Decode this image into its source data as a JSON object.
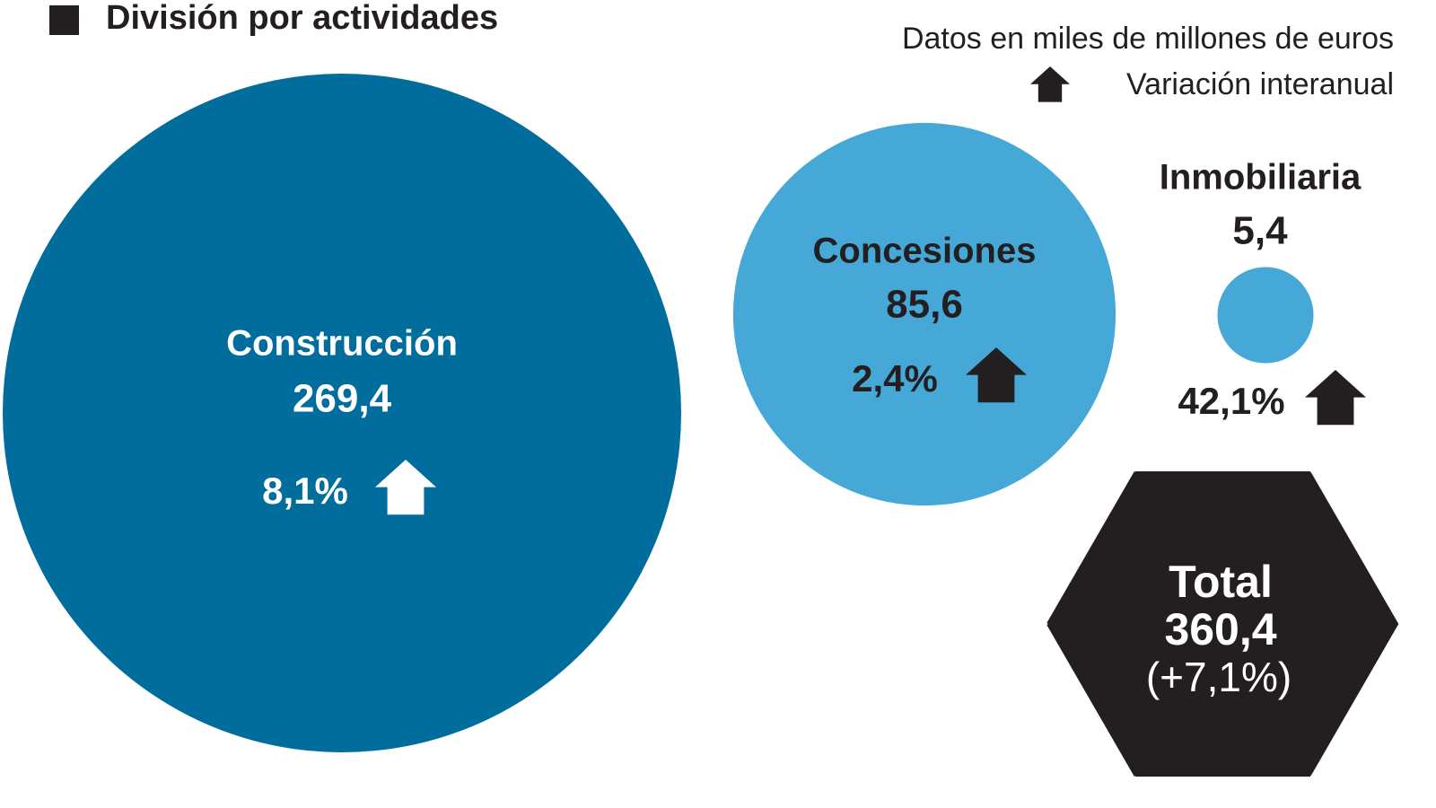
{
  "chart_data": {
    "type": "bubble",
    "title": "División por actividades",
    "subtitle": "Datos en miles de millones de euros",
    "legend_label": "Variación interanual",
    "categories": [
      "Construcción",
      "Concesiones",
      "Inmobiliaria"
    ],
    "values": [
      269.4,
      85.6,
      5.4
    ],
    "value_labels": [
      "269,4",
      "85,6",
      "5,4"
    ],
    "changes": [
      8.1,
      2.4,
      42.1
    ],
    "change_labels": [
      "8,1%",
      "2,4%",
      "42,1%"
    ],
    "colors": [
      "#006d9c",
      "#45a8d6",
      "#45a8d6"
    ],
    "total": {
      "label": "Total",
      "value": 360.4,
      "value_label": "360,4",
      "change": 7.1,
      "change_label": "(+7,1%)"
    }
  }
}
